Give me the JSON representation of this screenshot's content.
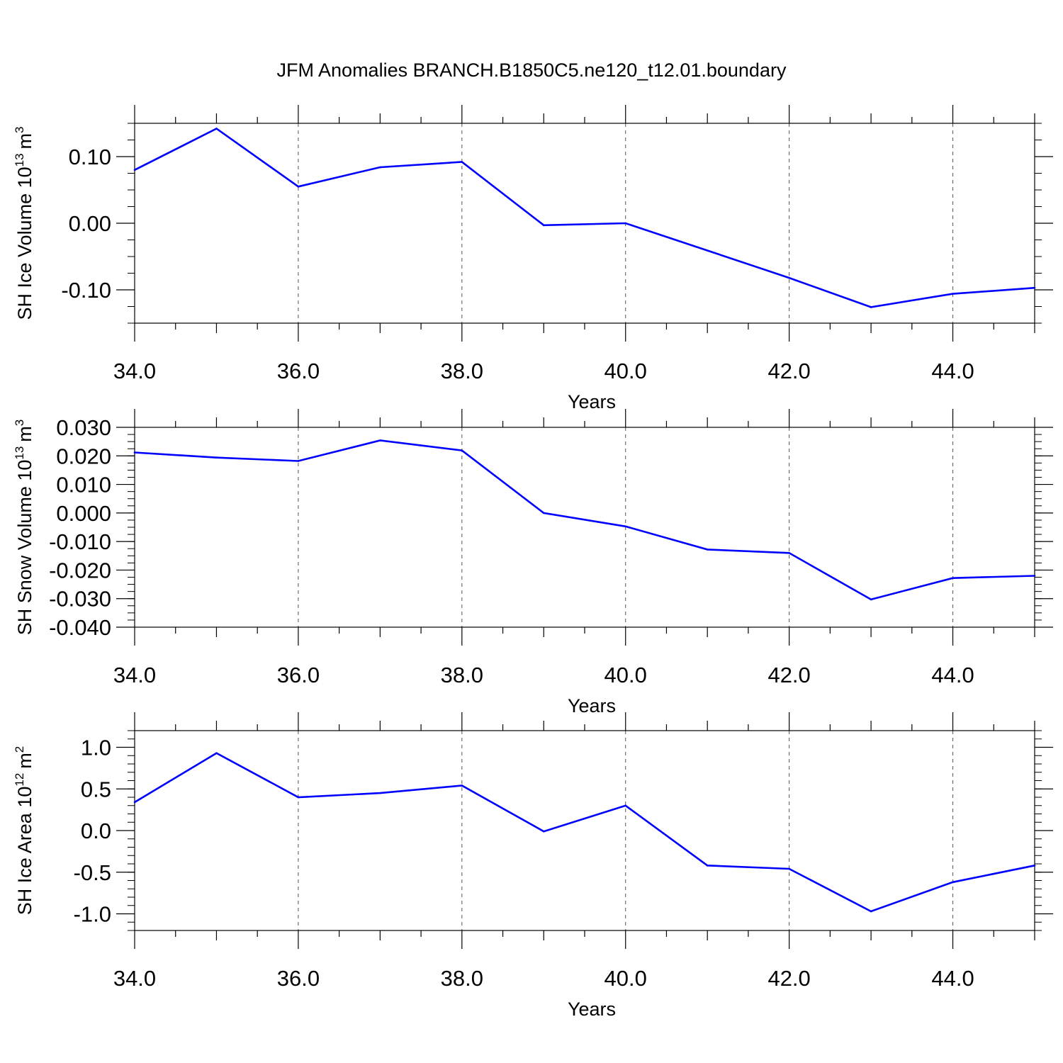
{
  "title": "JFM Anomalies BRANCH.B1850C5.ne120_t12.01.boundary",
  "colors": {
    "series": "#0000ff",
    "axis": "#000000",
    "grid": "#555555",
    "background": "#ffffff"
  },
  "chart_data": [
    {
      "type": "line",
      "ylabel": "SH Ice Volume 10",
      "ylabel_exp": "13",
      "ylabel_unit": "m",
      "ylabel_unit_exp": "3",
      "xlabel": "Years",
      "xlim": [
        34,
        45
      ],
      "ylim": [
        -0.15,
        0.15
      ],
      "xticks": [
        34,
        36,
        38,
        40,
        42,
        44
      ],
      "xtick_labels": [
        "34.0",
        "36.0",
        "38.0",
        "40.0",
        "42.0",
        "44.0"
      ],
      "yticks": [
        -0.1,
        0.0,
        0.1
      ],
      "ytick_labels": [
        "-0.10",
        "0.00",
        "0.10"
      ],
      "yminor_step": 0.025,
      "grid": "vertical dashed at major x ticks",
      "x": [
        34,
        35,
        36,
        37,
        38,
        39,
        40,
        41,
        42,
        43,
        44,
        45
      ],
      "series": [
        {
          "name": "SH Ice Volume",
          "values": [
            0.08,
            0.142,
            0.055,
            0.084,
            0.092,
            -0.003,
            0.0,
            -0.041,
            -0.082,
            -0.126,
            -0.106,
            -0.097
          ]
        }
      ]
    },
    {
      "type": "line",
      "ylabel": "SH Snow Volume 10",
      "ylabel_exp": "13",
      "ylabel_unit": "m",
      "ylabel_unit_exp": "3",
      "xlabel": "Years",
      "xlim": [
        34,
        45
      ],
      "ylim": [
        -0.04,
        0.03
      ],
      "xticks": [
        34,
        36,
        38,
        40,
        42,
        44
      ],
      "xtick_labels": [
        "34.0",
        "36.0",
        "38.0",
        "40.0",
        "42.0",
        "44.0"
      ],
      "yticks": [
        -0.04,
        -0.03,
        -0.02,
        -0.01,
        0.0,
        0.01,
        0.02,
        0.03
      ],
      "ytick_labels": [
        "-0.040",
        "-0.030",
        "-0.020",
        "-0.010",
        "0.000",
        "0.010",
        "0.020",
        "0.030"
      ],
      "yminor_step": 0.0025,
      "grid": "vertical dashed at major x ticks",
      "x": [
        34,
        35,
        36,
        37,
        38,
        39,
        40,
        41,
        42,
        43,
        44,
        45
      ],
      "series": [
        {
          "name": "SH Snow Volume",
          "values": [
            0.0212,
            0.0194,
            0.0182,
            0.0254,
            0.0219,
            0.0,
            -0.0047,
            -0.0128,
            -0.014,
            -0.0303,
            -0.0228,
            -0.022
          ]
        }
      ]
    },
    {
      "type": "line",
      "ylabel": "SH Ice Area 10",
      "ylabel_exp": "12",
      "ylabel_unit": "m",
      "ylabel_unit_exp": "2",
      "xlabel": "Years",
      "xlim": [
        34,
        45
      ],
      "ylim": [
        -1.2,
        1.2
      ],
      "xticks": [
        34,
        36,
        38,
        40,
        42,
        44
      ],
      "xtick_labels": [
        "34.0",
        "36.0",
        "38.0",
        "40.0",
        "42.0",
        "44.0"
      ],
      "yticks": [
        -1.0,
        -0.5,
        0.0,
        0.5,
        1.0
      ],
      "ytick_labels": [
        "-1.0",
        "-0.5",
        "0.0",
        "0.5",
        "1.0"
      ],
      "yminor_step": 0.1,
      "grid": "vertical dashed at major x ticks",
      "x": [
        34,
        35,
        36,
        37,
        38,
        39,
        40,
        41,
        42,
        43,
        44,
        45
      ],
      "series": [
        {
          "name": "SH Ice Area",
          "values": [
            0.34,
            0.93,
            0.4,
            0.45,
            0.54,
            -0.01,
            0.3,
            -0.42,
            -0.46,
            -0.97,
            -0.62,
            -0.42
          ]
        }
      ]
    }
  ]
}
